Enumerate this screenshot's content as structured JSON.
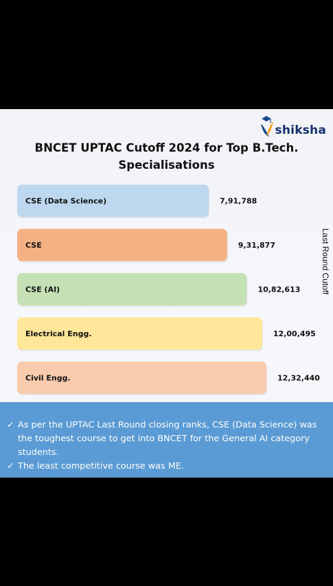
{
  "brand": {
    "name": "shiksha"
  },
  "title": {
    "line1": "BNCET UPTAC Cutoff 2024 for Top B.Tech.",
    "line2": "Specialisations"
  },
  "chart_data": {
    "type": "bar",
    "orientation": "horizontal",
    "title": "BNCET UPTAC Cutoff 2024 for Top B.Tech. Specialisations",
    "axis_label": "Last Round Cutoff",
    "categories": [
      "CSE (Data Science)",
      "CSE",
      "CSE (AI)",
      "Electrical Engg.",
      "Civil Engg."
    ],
    "values": [
      791788,
      931877,
      1082613,
      1200495,
      1232440
    ],
    "value_labels": [
      "7,91,788",
      "9,31,877",
      "10,82,613",
      "12,00,495",
      "12,32,440"
    ],
    "colors": [
      "#bdd7ee",
      "#f4b183",
      "#c5e0b4",
      "#ffe699",
      "#f8cbad"
    ],
    "grid": false,
    "legend": "none"
  },
  "notes": [
    {
      "check": "✓",
      "text": "As per the UPTAC Last Round closing ranks, CSE (Data Science) was the toughest course to get into BNCET for the General AI category students."
    },
    {
      "check": "✓",
      "text": "The least competitive course was ME."
    }
  ]
}
